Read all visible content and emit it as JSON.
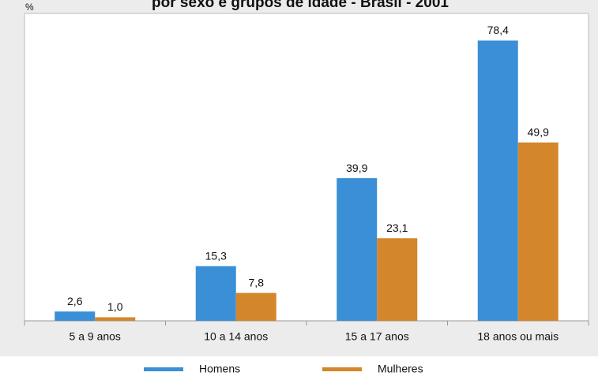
{
  "chart_data": {
    "type": "bar",
    "title": "por sexo e grupos de idade - Brasil - 2001",
    "y_label": "%",
    "categories": [
      "5 a 9 anos",
      "10 a 14 anos",
      "15 a 17 anos",
      "18 anos ou mais"
    ],
    "series": [
      {
        "name": "Homens",
        "color": "#3a8fd6",
        "values": [
          2.6,
          15.3,
          39.9,
          78.4
        ],
        "value_labels": [
          "2,6",
          "15,3",
          "39,9",
          "78,4"
        ]
      },
      {
        "name": "Mulheres",
        "color": "#d4862a",
        "values": [
          1.0,
          7.8,
          23.1,
          49.9
        ],
        "value_labels": [
          "1,0",
          "7,8",
          "23,1",
          "49,9"
        ]
      }
    ],
    "ylim": [
      0,
      86
    ]
  }
}
